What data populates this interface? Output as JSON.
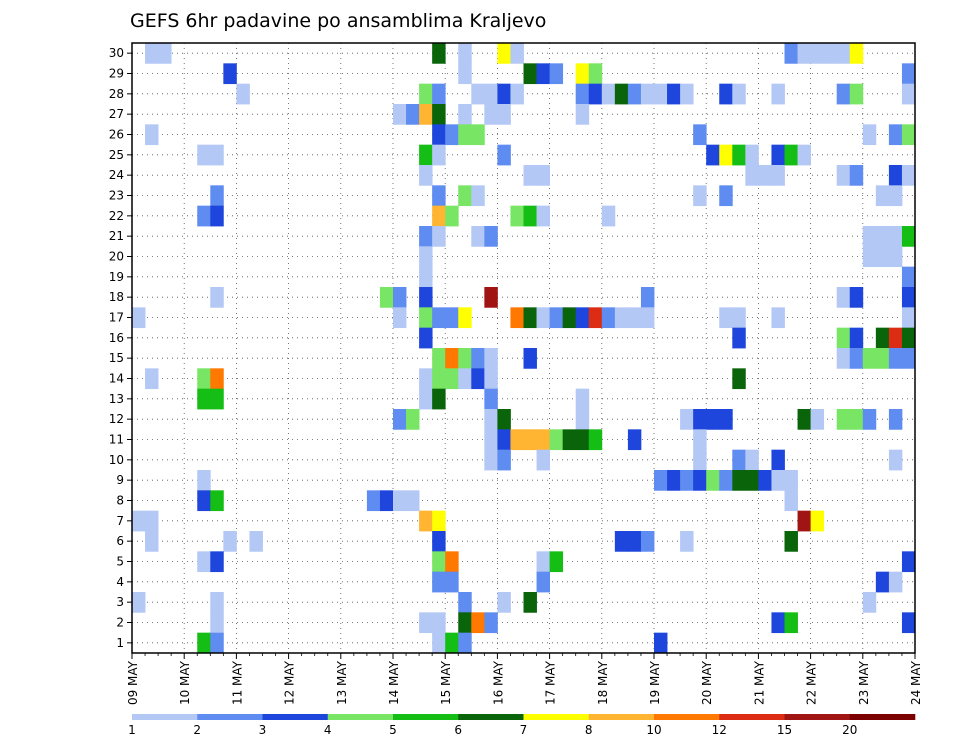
{
  "chart_data": {
    "type": "heatmap",
    "title": "GEFS 6hr padavine po ansamblima Kraljevo",
    "x_tick_labels": [
      "09 MAY",
      "10 MAY",
      "11 MAY",
      "12 MAY",
      "13 MAY",
      "14 MAY",
      "15 MAY",
      "16 MAY",
      "17 MAY",
      "18 MAY",
      "19 MAY",
      "20 MAY",
      "21 MAY",
      "22 MAY",
      "23 MAY",
      "24 MAY"
    ],
    "y_tick_labels": [
      "1",
      "2",
      "3",
      "4",
      "5",
      "6",
      "7",
      "8",
      "9",
      "10",
      "11",
      "12",
      "13",
      "14",
      "15",
      "16",
      "17",
      "18",
      "19",
      "20",
      "21",
      "22",
      "23",
      "24",
      "25",
      "26",
      "27",
      "28",
      "29",
      "30"
    ],
    "x_range_steps": [
      0,
      60
    ],
    "y_range_members": [
      0,
      30
    ],
    "grid": "dotted",
    "colorbar": {
      "placement": "bottom",
      "colors": [
        "#b4c8f5",
        "#5f8cf0",
        "#1e46dc",
        "#78e664",
        "#14be14",
        "#0a640a",
        "#ffff00",
        "#ffb432",
        "#ff7800",
        "#dc2d14",
        "#a01414",
        "#7d0000"
      ],
      "labels": [
        "1",
        "2",
        "3",
        "4",
        "5",
        "6",
        "7",
        "8",
        "10",
        "12",
        "15",
        "20"
      ]
    },
    "cells": [
      [
        30,
        1,
        1
      ],
      [
        30,
        2,
        1
      ],
      [
        30,
        23,
        6
      ],
      [
        30,
        25,
        1
      ],
      [
        30,
        28,
        7
      ],
      [
        30,
        29,
        1
      ],
      [
        30,
        50,
        2
      ],
      [
        30,
        51,
        1
      ],
      [
        30,
        52,
        1
      ],
      [
        30,
        53,
        1
      ],
      [
        30,
        54,
        1
      ],
      [
        30,
        55,
        7
      ],
      [
        29,
        7,
        3
      ],
      [
        29,
        25,
        1
      ],
      [
        29,
        30,
        6
      ],
      [
        29,
        31,
        3
      ],
      [
        29,
        32,
        2
      ],
      [
        29,
        34,
        7
      ],
      [
        29,
        35,
        4
      ],
      [
        29,
        59,
        2
      ],
      [
        28,
        8,
        1
      ],
      [
        28,
        22,
        4
      ],
      [
        28,
        23,
        2
      ],
      [
        28,
        26,
        1
      ],
      [
        28,
        27,
        1
      ],
      [
        28,
        28,
        3
      ],
      [
        28,
        29,
        1
      ],
      [
        28,
        34,
        2
      ],
      [
        28,
        35,
        3
      ],
      [
        28,
        36,
        1
      ],
      [
        28,
        37,
        6
      ],
      [
        28,
        38,
        2
      ],
      [
        28,
        39,
        1
      ],
      [
        28,
        40,
        1
      ],
      [
        28,
        41,
        3
      ],
      [
        28,
        42,
        1
      ],
      [
        28,
        45,
        3
      ],
      [
        28,
        46,
        1
      ],
      [
        28,
        49,
        1
      ],
      [
        28,
        54,
        2
      ],
      [
        28,
        55,
        4
      ],
      [
        28,
        59,
        1
      ],
      [
        27,
        20,
        1
      ],
      [
        27,
        21,
        2
      ],
      [
        27,
        22,
        8
      ],
      [
        27,
        23,
        6
      ],
      [
        27,
        25,
        1
      ],
      [
        27,
        27,
        1
      ],
      [
        27,
        28,
        1
      ],
      [
        27,
        34,
        1
      ],
      [
        26,
        1,
        1
      ],
      [
        26,
        23,
        3
      ],
      [
        26,
        24,
        2
      ],
      [
        26,
        25,
        4
      ],
      [
        26,
        26,
        4
      ],
      [
        26,
        43,
        2
      ],
      [
        26,
        56,
        1
      ],
      [
        26,
        58,
        2
      ],
      [
        26,
        59,
        4
      ],
      [
        25,
        5,
        1
      ],
      [
        25,
        6,
        1
      ],
      [
        25,
        22,
        5
      ],
      [
        25,
        23,
        1
      ],
      [
        25,
        28,
        2
      ],
      [
        25,
        44,
        3
      ],
      [
        25,
        45,
        7
      ],
      [
        25,
        46,
        5
      ],
      [
        25,
        47,
        1
      ],
      [
        25,
        49,
        3
      ],
      [
        25,
        50,
        5
      ],
      [
        25,
        51,
        1
      ],
      [
        24,
        22,
        1
      ],
      [
        24,
        30,
        1
      ],
      [
        24,
        31,
        1
      ],
      [
        24,
        47,
        1
      ],
      [
        24,
        48,
        1
      ],
      [
        24,
        49,
        1
      ],
      [
        24,
        54,
        1
      ],
      [
        24,
        55,
        2
      ],
      [
        24,
        58,
        3
      ],
      [
        24,
        59,
        1
      ],
      [
        23,
        6,
        2
      ],
      [
        23,
        23,
        2
      ],
      [
        23,
        25,
        4
      ],
      [
        23,
        26,
        1
      ],
      [
        23,
        43,
        1
      ],
      [
        23,
        45,
        2
      ],
      [
        23,
        57,
        1
      ],
      [
        23,
        58,
        1
      ],
      [
        22,
        5,
        2
      ],
      [
        22,
        6,
        3
      ],
      [
        22,
        23,
        8
      ],
      [
        22,
        24,
        4
      ],
      [
        22,
        29,
        4
      ],
      [
        22,
        30,
        5
      ],
      [
        22,
        31,
        1
      ],
      [
        22,
        36,
        1
      ],
      [
        21,
        22,
        2
      ],
      [
        21,
        23,
        1
      ],
      [
        21,
        26,
        1
      ],
      [
        21,
        27,
        2
      ],
      [
        21,
        56,
        1
      ],
      [
        21,
        57,
        1
      ],
      [
        21,
        58,
        1
      ],
      [
        21,
        59,
        5
      ],
      [
        20,
        22,
        1
      ],
      [
        20,
        56,
        1
      ],
      [
        20,
        57,
        1
      ],
      [
        20,
        58,
        1
      ],
      [
        19,
        22,
        1
      ],
      [
        19,
        59,
        2
      ],
      [
        18,
        6,
        1
      ],
      [
        18,
        19,
        4
      ],
      [
        18,
        20,
        2
      ],
      [
        18,
        22,
        3
      ],
      [
        18,
        27,
        11
      ],
      [
        18,
        39,
        2
      ],
      [
        18,
        54,
        1
      ],
      [
        18,
        55,
        3
      ],
      [
        18,
        59,
        3
      ],
      [
        17,
        0,
        1
      ],
      [
        17,
        20,
        1
      ],
      [
        17,
        22,
        4
      ],
      [
        17,
        23,
        2
      ],
      [
        17,
        24,
        2
      ],
      [
        17,
        25,
        7
      ],
      [
        17,
        29,
        9
      ],
      [
        17,
        30,
        6
      ],
      [
        17,
        31,
        1
      ],
      [
        17,
        32,
        2
      ],
      [
        17,
        33,
        6
      ],
      [
        17,
        34,
        3
      ],
      [
        17,
        35,
        10
      ],
      [
        17,
        36,
        2
      ],
      [
        17,
        37,
        1
      ],
      [
        17,
        38,
        1
      ],
      [
        17,
        39,
        1
      ],
      [
        17,
        45,
        1
      ],
      [
        17,
        46,
        1
      ],
      [
        17,
        49,
        1
      ],
      [
        17,
        59,
        1
      ],
      [
        16,
        22,
        3
      ],
      [
        16,
        46,
        3
      ],
      [
        16,
        54,
        4
      ],
      [
        16,
        55,
        3
      ],
      [
        16,
        57,
        6
      ],
      [
        16,
        58,
        10
      ],
      [
        16,
        59,
        6
      ],
      [
        15,
        23,
        4
      ],
      [
        15,
        24,
        9
      ],
      [
        15,
        25,
        4
      ],
      [
        15,
        26,
        2
      ],
      [
        15,
        27,
        1
      ],
      [
        15,
        30,
        3
      ],
      [
        15,
        54,
        1
      ],
      [
        15,
        55,
        2
      ],
      [
        15,
        56,
        4
      ],
      [
        15,
        57,
        4
      ],
      [
        15,
        58,
        2
      ],
      [
        15,
        59,
        2
      ],
      [
        14,
        1,
        1
      ],
      [
        14,
        5,
        4
      ],
      [
        14,
        6,
        9
      ],
      [
        14,
        22,
        1
      ],
      [
        14,
        23,
        4
      ],
      [
        14,
        24,
        4
      ],
      [
        14,
        25,
        1
      ],
      [
        14,
        26,
        3
      ],
      [
        14,
        27,
        1
      ],
      [
        14,
        46,
        6
      ],
      [
        13,
        5,
        5
      ],
      [
        13,
        6,
        5
      ],
      [
        13,
        22,
        1
      ],
      [
        13,
        23,
        6
      ],
      [
        13,
        27,
        2
      ],
      [
        13,
        34,
        1
      ],
      [
        12,
        20,
        2
      ],
      [
        12,
        21,
        4
      ],
      [
        12,
        27,
        1
      ],
      [
        12,
        28,
        6
      ],
      [
        12,
        34,
        1
      ],
      [
        12,
        42,
        1
      ],
      [
        12,
        43,
        3
      ],
      [
        12,
        44,
        3
      ],
      [
        12,
        45,
        3
      ],
      [
        12,
        51,
        6
      ],
      [
        12,
        52,
        1
      ],
      [
        12,
        54,
        4
      ],
      [
        12,
        55,
        4
      ],
      [
        12,
        56,
        2
      ],
      [
        12,
        58,
        2
      ],
      [
        11,
        27,
        1
      ],
      [
        11,
        28,
        3
      ],
      [
        11,
        29,
        8
      ],
      [
        11,
        30,
        8
      ],
      [
        11,
        31,
        8
      ],
      [
        11,
        32,
        4
      ],
      [
        11,
        33,
        6
      ],
      [
        11,
        34,
        6
      ],
      [
        11,
        35,
        5
      ],
      [
        11,
        38,
        3
      ],
      [
        11,
        43,
        1
      ],
      [
        10,
        27,
        1
      ],
      [
        10,
        28,
        2
      ],
      [
        10,
        31,
        1
      ],
      [
        10,
        43,
        1
      ],
      [
        10,
        46,
        2
      ],
      [
        10,
        47,
        1
      ],
      [
        10,
        49,
        3
      ],
      [
        10,
        58,
        1
      ],
      [
        9,
        5,
        1
      ],
      [
        9,
        40,
        2
      ],
      [
        9,
        41,
        3
      ],
      [
        9,
        42,
        2
      ],
      [
        9,
        43,
        3
      ],
      [
        9,
        44,
        4
      ],
      [
        9,
        45,
        2
      ],
      [
        9,
        46,
        6
      ],
      [
        9,
        47,
        6
      ],
      [
        9,
        48,
        3
      ],
      [
        9,
        49,
        1
      ],
      [
        9,
        50,
        1
      ],
      [
        8,
        5,
        3
      ],
      [
        8,
        6,
        5
      ],
      [
        8,
        18,
        2
      ],
      [
        8,
        19,
        3
      ],
      [
        8,
        20,
        1
      ],
      [
        8,
        21,
        1
      ],
      [
        8,
        50,
        1
      ],
      [
        7,
        0,
        1
      ],
      [
        7,
        1,
        1
      ],
      [
        7,
        22,
        8
      ],
      [
        7,
        23,
        7
      ],
      [
        7,
        51,
        11
      ],
      [
        7,
        52,
        7
      ],
      [
        6,
        1,
        1
      ],
      [
        6,
        7,
        1
      ],
      [
        6,
        9,
        1
      ],
      [
        6,
        23,
        3
      ],
      [
        6,
        37,
        3
      ],
      [
        6,
        38,
        3
      ],
      [
        6,
        39,
        2
      ],
      [
        6,
        42,
        1
      ],
      [
        6,
        50,
        6
      ],
      [
        5,
        5,
        1
      ],
      [
        5,
        6,
        3
      ],
      [
        5,
        23,
        4
      ],
      [
        5,
        24,
        9
      ],
      [
        5,
        31,
        1
      ],
      [
        5,
        32,
        5
      ],
      [
        5,
        59,
        3
      ],
      [
        4,
        23,
        2
      ],
      [
        4,
        24,
        2
      ],
      [
        4,
        31,
        2
      ],
      [
        4,
        57,
        3
      ],
      [
        4,
        58,
        1
      ],
      [
        3,
        0,
        1
      ],
      [
        3,
        6,
        1
      ],
      [
        3,
        25,
        2
      ],
      [
        3,
        28,
        1
      ],
      [
        3,
        30,
        6
      ],
      [
        3,
        56,
        1
      ],
      [
        2,
        6,
        1
      ],
      [
        2,
        22,
        1
      ],
      [
        2,
        23,
        1
      ],
      [
        2,
        25,
        6
      ],
      [
        2,
        26,
        9
      ],
      [
        2,
        27,
        2
      ],
      [
        2,
        49,
        3
      ],
      [
        2,
        50,
        5
      ],
      [
        2,
        59,
        3
      ],
      [
        1,
        5,
        5
      ],
      [
        1,
        6,
        2
      ],
      [
        1,
        23,
        1
      ],
      [
        1,
        24,
        5
      ],
      [
        1,
        25,
        2
      ],
      [
        1,
        40,
        3
      ]
    ]
  }
}
